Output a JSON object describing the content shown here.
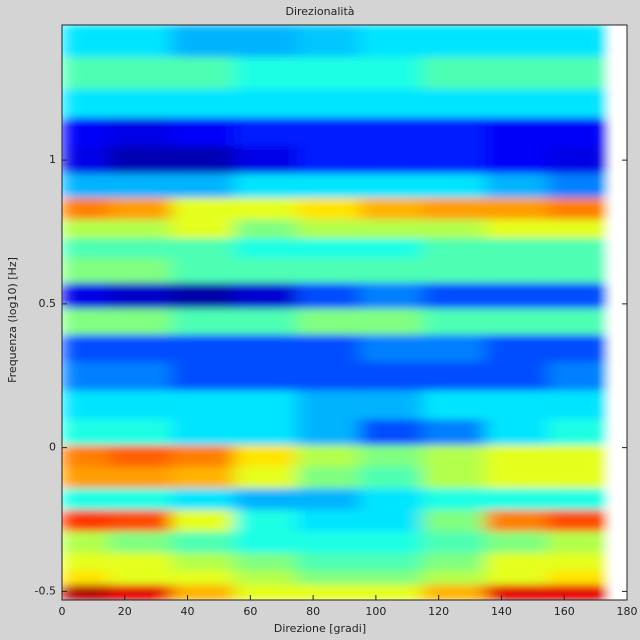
{
  "chart_data": {
    "type": "heatmap",
    "title": "Direzionalità",
    "xlabel": "Direzione [gradi]",
    "ylabel": "Frequenza (log10) [Hz]",
    "xlim": [
      0,
      180
    ],
    "ylim": [
      -0.53,
      1.47
    ],
    "xticks": [
      0,
      20,
      40,
      60,
      80,
      100,
      120,
      140,
      160,
      180
    ],
    "yticks": [
      -0.5,
      0,
      0.5,
      1
    ],
    "colormap": "jet",
    "x": [
      5,
      25,
      45,
      65,
      85,
      105,
      125,
      145,
      165
    ],
    "y": [
      -0.5,
      -0.45,
      -0.4,
      -0.33,
      -0.25,
      -0.18,
      -0.1,
      -0.03,
      0.05,
      0.15,
      0.25,
      0.35,
      0.44,
      0.53,
      0.62,
      0.7,
      0.76,
      0.83,
      0.91,
      1.0,
      1.1,
      1.2,
      1.3,
      1.42
    ],
    "z": [
      [
        0.95,
        0.9,
        0.7,
        0.6,
        0.6,
        0.6,
        0.7,
        0.9,
        0.9
      ],
      [
        0.65,
        0.6,
        0.6,
        0.55,
        0.5,
        0.5,
        0.55,
        0.6,
        0.65
      ],
      [
        0.6,
        0.6,
        0.55,
        0.5,
        0.45,
        0.45,
        0.5,
        0.6,
        0.6
      ],
      [
        0.55,
        0.5,
        0.45,
        0.4,
        0.4,
        0.4,
        0.45,
        0.5,
        0.55
      ],
      [
        0.82,
        0.8,
        0.6,
        0.4,
        0.35,
        0.35,
        0.5,
        0.75,
        0.8
      ],
      [
        0.4,
        0.4,
        0.35,
        0.3,
        0.3,
        0.35,
        0.4,
        0.4,
        0.4
      ],
      [
        0.72,
        0.72,
        0.7,
        0.6,
        0.5,
        0.45,
        0.55,
        0.6,
        0.6
      ],
      [
        0.75,
        0.78,
        0.75,
        0.65,
        0.55,
        0.5,
        0.55,
        0.6,
        0.6
      ],
      [
        0.4,
        0.4,
        0.35,
        0.35,
        0.3,
        0.2,
        0.25,
        0.35,
        0.4
      ],
      [
        0.35,
        0.35,
        0.35,
        0.35,
        0.3,
        0.3,
        0.35,
        0.35,
        0.35
      ],
      [
        0.25,
        0.25,
        0.2,
        0.2,
        0.2,
        0.2,
        0.2,
        0.2,
        0.25
      ],
      [
        0.2,
        0.2,
        0.2,
        0.2,
        0.2,
        0.25,
        0.25,
        0.2,
        0.2
      ],
      [
        0.5,
        0.5,
        0.45,
        0.45,
        0.5,
        0.5,
        0.45,
        0.45,
        0.45
      ],
      [
        0.1,
        0.07,
        0.04,
        0.08,
        0.2,
        0.25,
        0.2,
        0.2,
        0.2
      ],
      [
        0.5,
        0.5,
        0.45,
        0.45,
        0.45,
        0.45,
        0.45,
        0.45,
        0.45
      ],
      [
        0.45,
        0.45,
        0.45,
        0.4,
        0.4,
        0.4,
        0.45,
        0.45,
        0.45
      ],
      [
        0.55,
        0.55,
        0.6,
        0.5,
        0.55,
        0.55,
        0.55,
        0.6,
        0.6
      ],
      [
        0.75,
        0.72,
        0.6,
        0.6,
        0.65,
        0.7,
        0.72,
        0.72,
        0.75
      ],
      [
        0.3,
        0.3,
        0.3,
        0.35,
        0.35,
        0.35,
        0.35,
        0.3,
        0.25
      ],
      [
        0.1,
        0.05,
        0.05,
        0.1,
        0.15,
        0.15,
        0.15,
        0.12,
        0.1
      ],
      [
        0.12,
        0.1,
        0.12,
        0.15,
        0.15,
        0.15,
        0.15,
        0.12,
        0.12
      ],
      [
        0.35,
        0.35,
        0.35,
        0.35,
        0.35,
        0.35,
        0.35,
        0.35,
        0.35
      ],
      [
        0.45,
        0.45,
        0.45,
        0.4,
        0.4,
        0.4,
        0.45,
        0.45,
        0.45
      ],
      [
        0.35,
        0.35,
        0.3,
        0.3,
        0.32,
        0.35,
        0.35,
        0.35,
        0.35
      ]
    ]
  }
}
